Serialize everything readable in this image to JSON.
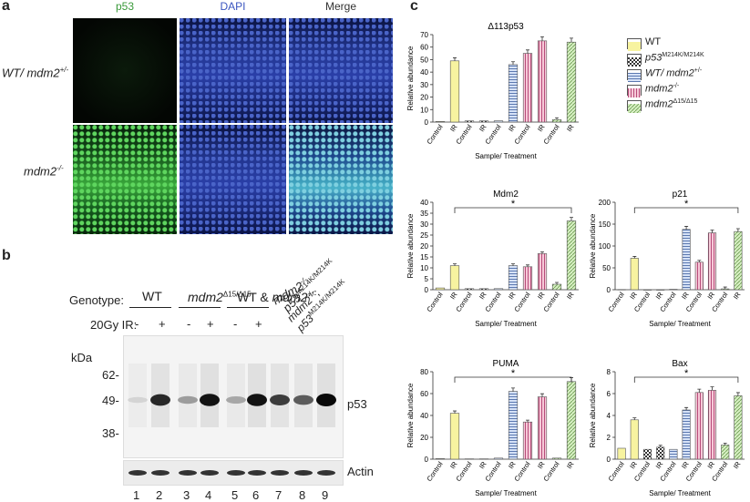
{
  "panel_a": {
    "letter": "a",
    "channels": [
      {
        "label": "p53",
        "color": "#3a9a3a"
      },
      {
        "label": "DAPI",
        "color": "#3a55c0"
      },
      {
        "label": "Merge",
        "color": "#333333"
      }
    ],
    "rows": [
      "WT/ mdm2+/-",
      "mdm2-/-"
    ]
  },
  "panel_b": {
    "letter": "b",
    "genotype_label": "Genotype:",
    "ir_label": "20Gy IR:",
    "groups": [
      "WT",
      "mdm2Δ15/Δ15",
      "WT & mdm2+/-",
      "mdm2-/-",
      "p53M214K/M214K",
      "mdm2-/-; p53M214K/M214K"
    ],
    "ir_marks": [
      "-",
      "+",
      "-",
      "+",
      "-",
      "+"
    ],
    "kda": "kDa",
    "markers": [
      "62-",
      "49-",
      "38-"
    ],
    "band_labels": [
      "p53",
      "Actin"
    ],
    "lanes": [
      "1",
      "2",
      "3",
      "4",
      "5",
      "6",
      "7",
      "8",
      "9"
    ],
    "p53_band_intensity": [
      0.05,
      0.85,
      0.3,
      0.95,
      0.25,
      0.95,
      0.75,
      0.6,
      1.0
    ]
  },
  "panel_c": {
    "letter": "c",
    "legend": [
      {
        "label": "WT",
        "fill": "#f7f3a0",
        "pattern": "solid"
      },
      {
        "label": "p53M214K/M214K",
        "fill": "#444444",
        "pattern": "check"
      },
      {
        "label": "WT/ mdm2+/-",
        "fill": "#d6e2f7",
        "pattern": "hstripe"
      },
      {
        "label": "mdm2-/-",
        "fill": "#f6c9d8",
        "pattern": "vstripe"
      },
      {
        "label": "mdm2Δ15/Δ15",
        "fill": "#d7f0c3",
        "pattern": "dstripe"
      }
    ]
  },
  "chart_data": [
    {
      "type": "bar",
      "title": "Δ113p53",
      "ylabel": "Relative abundance",
      "xlabel": "Sample/ Treatment",
      "categories": [
        "Control",
        "IR",
        "Control",
        "IR",
        "Control",
        "IR",
        "Control",
        "IR",
        "Control",
        "IR"
      ],
      "values": [
        0.5,
        49,
        1,
        1,
        1,
        46,
        55,
        65,
        2,
        64
      ],
      "yticks": [
        0,
        10,
        20,
        30,
        40,
        50,
        60,
        70
      ],
      "ylim": [
        0,
        70
      ],
      "bracket": null
    },
    {
      "type": "bar",
      "title": "Mdm2",
      "ylabel": "Relative abundance",
      "xlabel": "Sample/ Treatment",
      "categories": [
        "Control",
        "IR",
        "Control",
        "IR",
        "Control",
        "IR",
        "Control",
        "IR",
        "Control",
        "IR"
      ],
      "values": [
        0.8,
        11,
        0.5,
        0.5,
        0.5,
        11,
        10.5,
        16.5,
        2.5,
        31.5
      ],
      "yticks": [
        0,
        5,
        10,
        15,
        20,
        25,
        30,
        35,
        40
      ],
      "ylim": [
        0,
        40
      ],
      "bracket": "*"
    },
    {
      "type": "bar",
      "title": "p21",
      "ylabel": "Relative abundance",
      "xlabel": "Sample/ Treatment",
      "categories": [
        "Control",
        "IR",
        "Control",
        "IR",
        "Control",
        "IR",
        "Control",
        "IR",
        "Control",
        "IR"
      ],
      "values": [
        0.5,
        72,
        0,
        0,
        1,
        138,
        63,
        130,
        2,
        133
      ],
      "yticks": [
        0,
        50,
        100,
        150,
        200
      ],
      "ylim": [
        0,
        200
      ],
      "bracket": "*"
    },
    {
      "type": "bar",
      "title": "PUMA",
      "ylabel": "Relative abundance",
      "xlabel": "Sample/ Treatment",
      "categories": [
        "Control",
        "IR",
        "Control",
        "IR",
        "Control",
        "IR",
        "Control",
        "IR",
        "Control",
        "IR"
      ],
      "values": [
        0.5,
        42,
        0.3,
        0.3,
        1,
        62,
        34,
        57,
        1,
        71
      ],
      "yticks": [
        0,
        20,
        40,
        60,
        80
      ],
      "ylim": [
        0,
        80
      ],
      "bracket": "*"
    },
    {
      "type": "bar",
      "title": "Bax",
      "ylabel": "Relative abundance",
      "xlabel": "Sample/ Treatment",
      "categories": [
        "Control",
        "IR",
        "Control",
        "IR",
        "Control",
        "IR",
        "Control",
        "IR",
        "Control",
        "IR"
      ],
      "values": [
        1,
        3.6,
        0.9,
        1.1,
        0.9,
        4.5,
        6.1,
        6.3,
        1.3,
        5.8
      ],
      "yticks": [
        0,
        2,
        4,
        6,
        8
      ],
      "ylim": [
        0,
        8
      ],
      "bracket": "*"
    }
  ]
}
